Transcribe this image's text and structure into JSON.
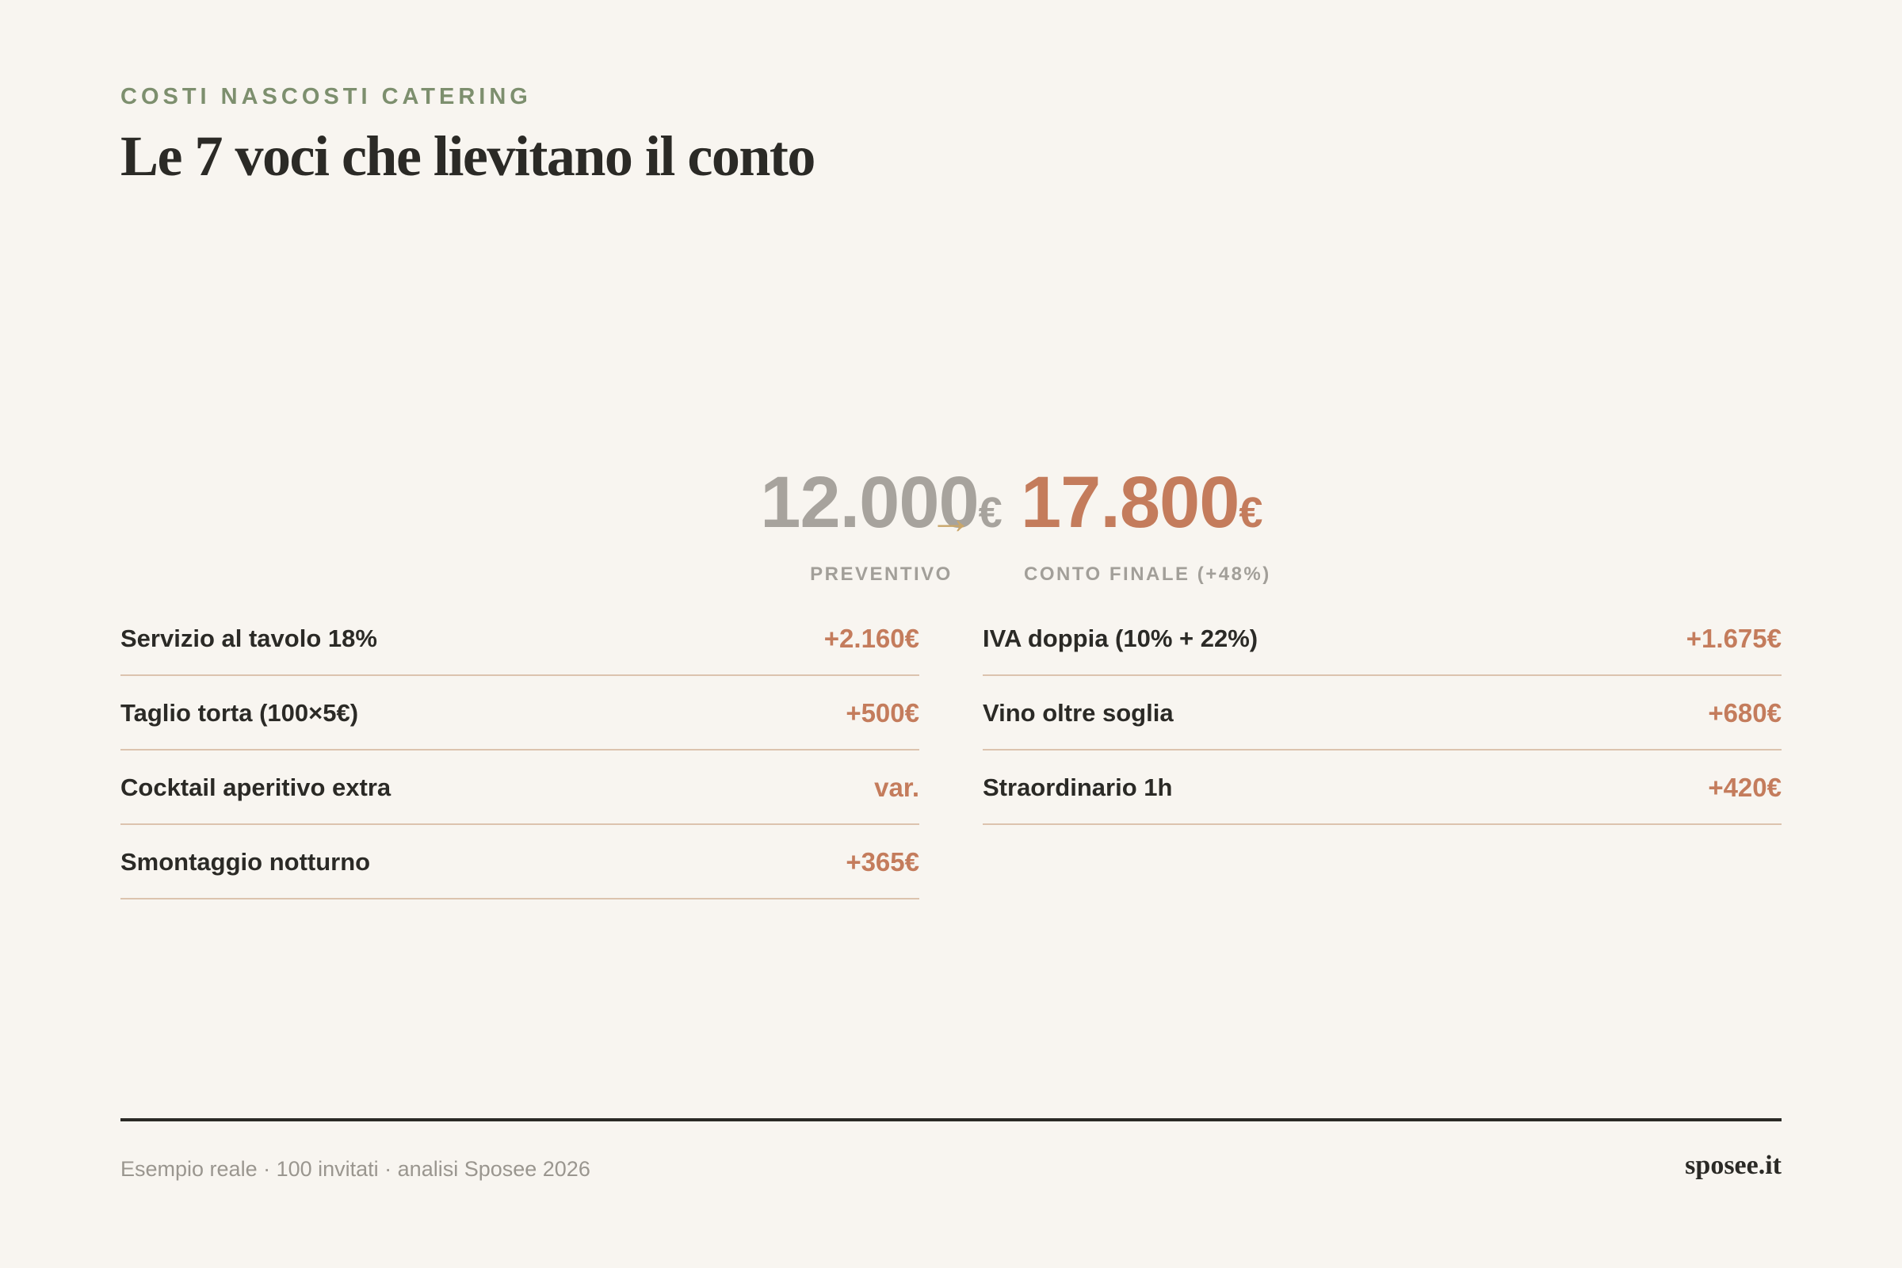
{
  "header": {
    "eyebrow": "COSTI NASCOSTI CATERING",
    "title": "Le 7 voci che lievitano il conto"
  },
  "comparison": {
    "before": {
      "value": "12.000",
      "currency": "€",
      "label": "PREVENTIVO"
    },
    "arrow": "→",
    "after": {
      "value": "17.800",
      "currency": "€",
      "label": "CONTO FINALE (+48%)"
    }
  },
  "items": {
    "left": [
      {
        "label": "Servizio al tavolo 18%",
        "amount": "+2.160€"
      },
      {
        "label": "Taglio torta (100×5€)",
        "amount": "+500€"
      },
      {
        "label": "Cocktail aperitivo extra",
        "amount": "var."
      },
      {
        "label": "Smontaggio notturno",
        "amount": "+365€"
      }
    ],
    "right": [
      {
        "label": "IVA doppia (10% + 22%)",
        "amount": "+1.675€"
      },
      {
        "label": "Vino oltre soglia",
        "amount": "+680€"
      },
      {
        "label": "Straordinario 1h",
        "amount": "+420€"
      }
    ]
  },
  "footer": {
    "note": "Esempio reale · 100 invitati · analisi Sposee 2026",
    "brand": "sposee.it"
  },
  "colors": {
    "background": "#f8f5f0",
    "accent": "#c47c5c",
    "eyebrow": "#7d8f6e",
    "muted": "#a7a39d",
    "arrow": "#c9a66b",
    "divider": "#dcc3ae"
  }
}
